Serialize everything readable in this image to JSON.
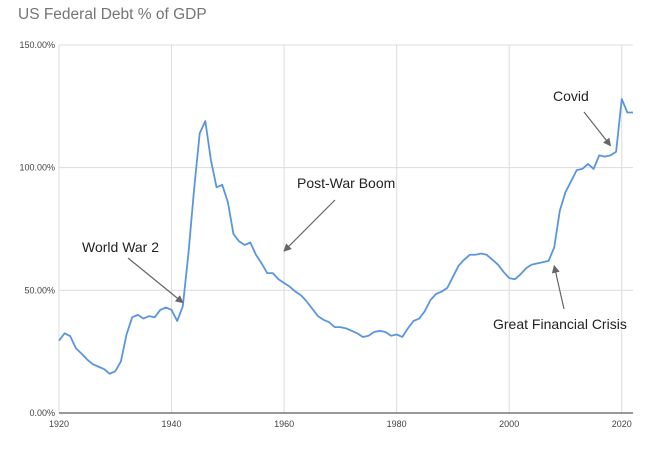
{
  "chart_data": {
    "type": "line",
    "title": "US Federal Debt % of GDP",
    "xlabel": "",
    "ylabel": "",
    "xlim": [
      1920,
      2022
    ],
    "ylim": [
      0,
      150
    ],
    "grid": true,
    "legend": "none",
    "x_ticks": [
      1920,
      1940,
      1960,
      1980,
      2000,
      2020
    ],
    "y_ticks": [
      {
        "value": 0,
        "label": "0.00%"
      },
      {
        "value": 50,
        "label": "50.00%"
      },
      {
        "value": 100,
        "label": "100.00%"
      },
      {
        "value": 150,
        "label": "150.00%"
      }
    ],
    "series": [
      {
        "color": "#5b95e0",
        "x": [
          1920,
          1921,
          1922,
          1923,
          1924,
          1925,
          1926,
          1927,
          1928,
          1929,
          1930,
          1931,
          1932,
          1933,
          1934,
          1935,
          1936,
          1937,
          1938,
          1939,
          1940,
          1941,
          1942,
          1943,
          1944,
          1945,
          1946,
          1947,
          1948,
          1949,
          1950,
          1951,
          1952,
          1953,
          1954,
          1955,
          1956,
          1957,
          1958,
          1959,
          1960,
          1961,
          1962,
          1963,
          1964,
          1965,
          1966,
          1967,
          1968,
          1969,
          1970,
          1971,
          1972,
          1973,
          1974,
          1975,
          1976,
          1977,
          1978,
          1979,
          1980,
          1981,
          1982,
          1983,
          1984,
          1985,
          1986,
          1987,
          1988,
          1989,
          1990,
          1991,
          1992,
          1993,
          1994,
          1995,
          1996,
          1997,
          1998,
          1999,
          2000,
          2001,
          2002,
          2003,
          2004,
          2005,
          2006,
          2007,
          2008,
          2009,
          2010,
          2011,
          2012,
          2013,
          2014,
          2015,
          2016,
          2017,
          2018,
          2019,
          2020,
          2021,
          2022
        ],
        "values": [
          29.5,
          32.5,
          31.3,
          26.4,
          24.2,
          21.8,
          19.9,
          18.9,
          17.9,
          16.0,
          17.0,
          21.0,
          32.0,
          39.0,
          40.0,
          38.5,
          39.5,
          39.0,
          42.0,
          43.0,
          42.0,
          37.5,
          43.5,
          65.0,
          91.0,
          114.0,
          119.0,
          103.0,
          92.0,
          93.0,
          86.0,
          73.0,
          70.0,
          68.5,
          69.5,
          64.5,
          61.0,
          57.0,
          57.0,
          54.5,
          53.0,
          51.5,
          49.5,
          48.0,
          45.5,
          42.5,
          39.5,
          38.0,
          37.0,
          35.0,
          35.0,
          34.5,
          33.5,
          32.5,
          31.0,
          31.5,
          33.0,
          33.5,
          33.0,
          31.5,
          32.0,
          31.0,
          34.5,
          37.5,
          38.5,
          41.5,
          46.0,
          48.5,
          49.5,
          51.0,
          55.5,
          60.0,
          62.5,
          64.5,
          64.5,
          65.0,
          64.5,
          62.5,
          60.5,
          57.5,
          55.0,
          54.5,
          56.5,
          59.0,
          60.5,
          61.0,
          61.5,
          62.0,
          67.5,
          82.5,
          90.0,
          94.5,
          99.0,
          99.5,
          101.5,
          99.5,
          105.0,
          104.5,
          105.0,
          106.5,
          128.0,
          122.5,
          122.5
        ]
      }
    ],
    "annotations": [
      {
        "text": "World War 2",
        "x": 1942,
        "y": 45
      },
      {
        "text": "Post-War Boom",
        "x": 1960,
        "y": 66
      },
      {
        "text": "Great Financial Crisis",
        "x": 2008,
        "y": 60
      },
      {
        "text": "Covid",
        "x": 2018,
        "y": 109
      }
    ]
  }
}
